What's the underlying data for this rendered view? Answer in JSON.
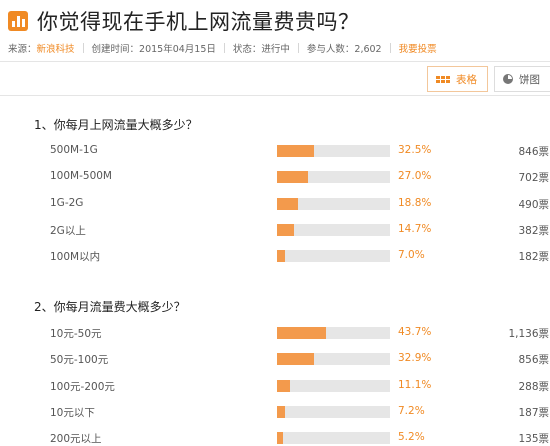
{
  "page": {
    "title": "你觉得现在手机上网流量费贵吗？",
    "meta": {
      "source_label": "来源：",
      "source_name": "新浪科技",
      "created": "创建时间：2015年04月15日",
      "status": "状态：进行中",
      "participants": "参与人数：2,602",
      "vote_link": "我要投票"
    }
  },
  "view_tabs": [
    {
      "label": "表格",
      "icon": "table-grid-icon",
      "active": true
    },
    {
      "label": "饼图",
      "icon": "pie-chart-icon",
      "active": false
    }
  ],
  "colors": {
    "accent": "#f08a24",
    "bar_fill": "#f39a4c",
    "bar_track": "#e6e6e6"
  },
  "questions": [
    {
      "title": "1、你每月上网流量大概多少？",
      "options": [
        {
          "label": "500M-1G",
          "pct": "32.5%",
          "value": 32.5,
          "votes": "846票"
        },
        {
          "label": "100M-500M",
          "pct": "27.0%",
          "value": 27.0,
          "votes": "702票"
        },
        {
          "label": "1G-2G",
          "pct": "18.8%",
          "value": 18.8,
          "votes": "490票"
        },
        {
          "label": "2G以上",
          "pct": "14.7%",
          "value": 14.7,
          "votes": "382票"
        },
        {
          "label": "100M以内",
          "pct": "7.0%",
          "value": 7.0,
          "votes": "182票"
        }
      ]
    },
    {
      "title": "2、你每月流量费大概多少？",
      "options": [
        {
          "label": "10元-50元",
          "pct": "43.7%",
          "value": 43.7,
          "votes": "1,136票"
        },
        {
          "label": "50元-100元",
          "pct": "32.9%",
          "value": 32.9,
          "votes": "856票"
        },
        {
          "label": "100元-200元",
          "pct": "11.1%",
          "value": 11.1,
          "votes": "288票"
        },
        {
          "label": "10元以下",
          "pct": "7.2%",
          "value": 7.2,
          "votes": "187票"
        },
        {
          "label": "200元以上",
          "pct": "5.2%",
          "value": 5.2,
          "votes": "135票"
        }
      ]
    }
  ]
}
